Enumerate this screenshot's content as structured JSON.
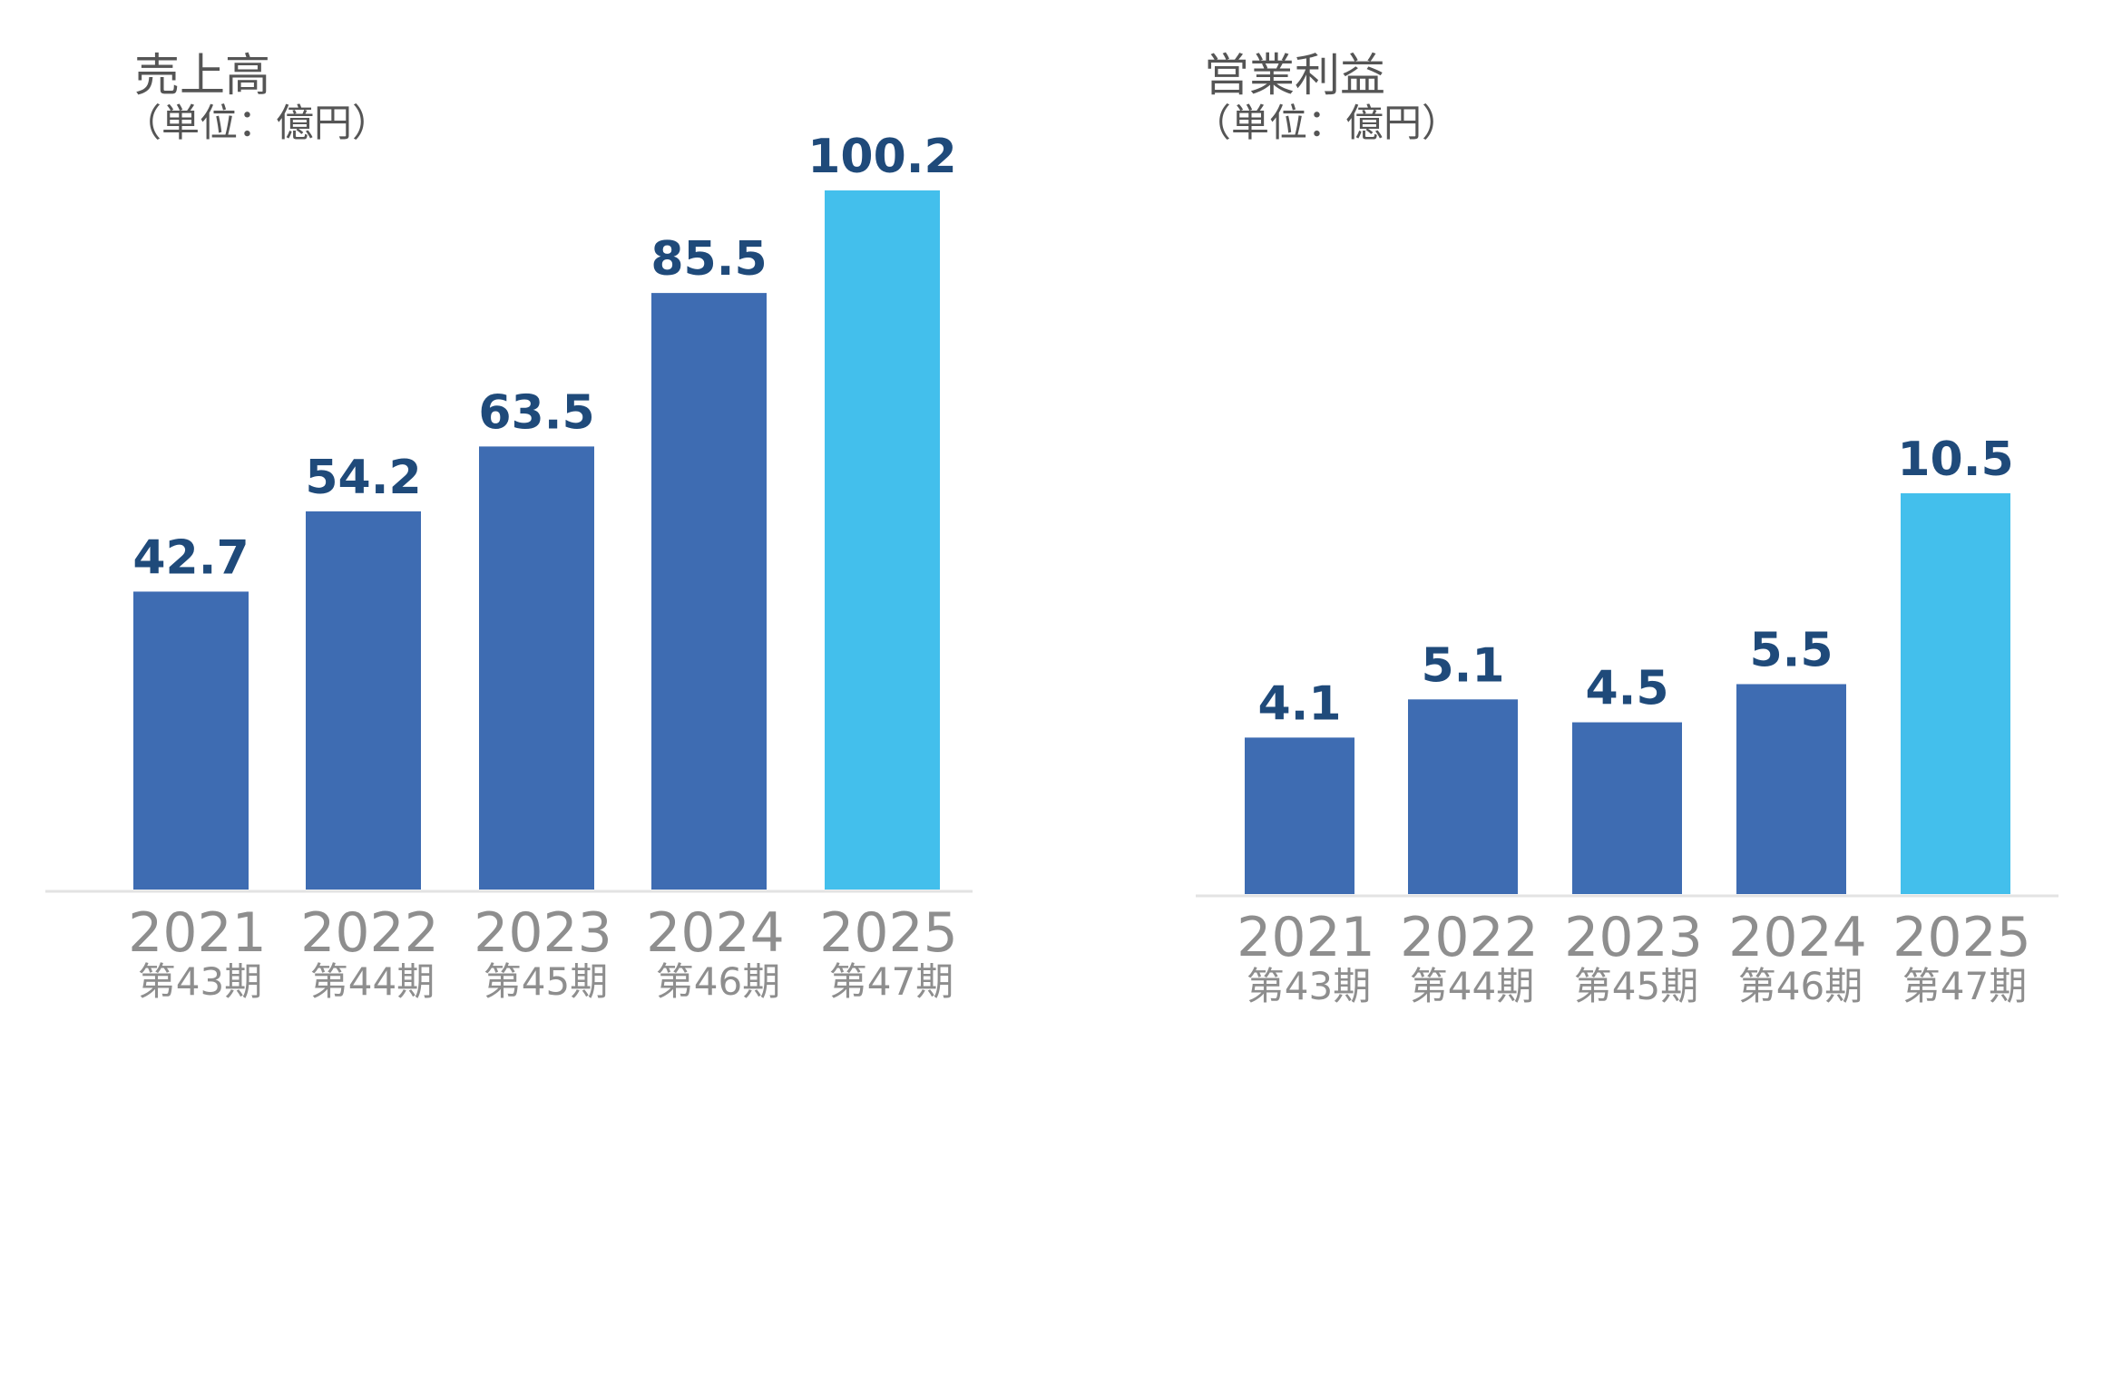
{
  "colors": {
    "bar": "#3E6CB2",
    "highlight": "#43BFEC",
    "value_label": "#1F4A7A",
    "axis_text": "#8E8E8E",
    "axis_line": "#E3E3E3"
  },
  "chart_data": [
    {
      "type": "bar",
      "title": "売上高",
      "unit": "（単位：億円）",
      "categories": [
        "2021",
        "2022",
        "2023",
        "2024",
        "2025"
      ],
      "periods": [
        "第43期",
        "第44期",
        "第45期",
        "第46期",
        "第47期"
      ],
      "values": [
        42.7,
        54.2,
        63.5,
        85.5,
        100.2
      ],
      "value_labels": [
        "42.7",
        "54.2",
        "63.5",
        "85.5",
        "100.2"
      ],
      "highlight_index": 4,
      "xlabel": "",
      "ylabel": "",
      "ylim": [
        0,
        100.2
      ],
      "grid": false
    },
    {
      "type": "bar",
      "title": "営業利益",
      "unit": "（単位：億円）",
      "categories": [
        "2021",
        "2022",
        "2023",
        "2024",
        "2025"
      ],
      "periods": [
        "第43期",
        "第44期",
        "第45期",
        "第46期",
        "第47期"
      ],
      "values": [
        4.1,
        5.1,
        4.5,
        5.5,
        10.5
      ],
      "value_labels": [
        "4.1",
        "5.1",
        "4.5",
        "5.5",
        "10.5"
      ],
      "highlight_index": 4,
      "xlabel": "",
      "ylabel": "",
      "ylim": [
        0,
        10.5
      ],
      "grid": false
    }
  ]
}
